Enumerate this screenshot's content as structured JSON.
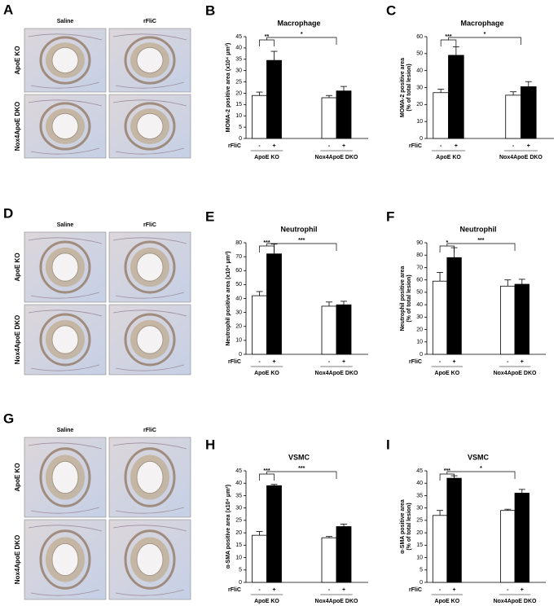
{
  "micrographs": [
    {
      "panel": "A",
      "columns": [
        "Saline",
        "rFliC"
      ],
      "rows": [
        "ApoE KO",
        "Nox4ApoE DKO"
      ]
    },
    {
      "panel": "D",
      "columns": [
        "Saline",
        "rFliC"
      ],
      "rows": [
        "ApoE KO",
        "Nox4ApoE DKO"
      ]
    },
    {
      "panel": "G",
      "columns": [
        "Saline",
        "rFliC"
      ],
      "rows": [
        "ApoE KO",
        "Nox4ApoE DKO"
      ]
    }
  ],
  "chart_data": [
    {
      "type": "bar",
      "panel": "B",
      "title": "Macrophage",
      "y_label": [
        "MOMA-2 positive area (x10⁴ μm²)"
      ],
      "x_label": "rFliC",
      "categories": [
        "-",
        "+",
        "-",
        "+"
      ],
      "groups": [
        "ApoE KO",
        "Nox4ApoE DKO"
      ],
      "values": [
        19,
        34.5,
        18,
        21
      ],
      "errors": [
        1.5,
        4,
        1,
        2
      ],
      "colors": [
        "#ffffff",
        "#000000",
        "#ffffff",
        "#000000"
      ],
      "ylim": [
        0,
        45
      ],
      "yticks": [
        0,
        5,
        10,
        15,
        20,
        25,
        30,
        35,
        40,
        45
      ],
      "annotations": [
        "**",
        "*"
      ]
    },
    {
      "type": "bar",
      "panel": "C",
      "title": "Macrophage",
      "y_label": [
        "MOMA-2 positive area",
        "(% of total lesion)"
      ],
      "x_label": "rFliC",
      "categories": [
        "-",
        "+",
        "-",
        "+"
      ],
      "groups": [
        "ApoE KO",
        "Nox4ApoE DKO"
      ],
      "values": [
        27,
        49,
        25.5,
        30.5
      ],
      "errors": [
        2,
        5,
        2,
        3
      ],
      "colors": [
        "#ffffff",
        "#000000",
        "#ffffff",
        "#000000"
      ],
      "ylim": [
        0,
        60
      ],
      "yticks": [
        0,
        10,
        20,
        30,
        40,
        50,
        60
      ],
      "annotations": [
        "***",
        "*"
      ]
    },
    {
      "type": "bar",
      "panel": "E",
      "title": "Neutrophil",
      "y_label": [
        "Neutrophil positive area (x10⁴ μm²)"
      ],
      "x_label": "rFliC",
      "categories": [
        "-",
        "+",
        "-",
        "+"
      ],
      "groups": [
        "ApoE KO",
        "Nox4ApoE DKO"
      ],
      "values": [
        42,
        72,
        34.5,
        35.5
      ],
      "errors": [
        3,
        7,
        3,
        2.5
      ],
      "colors": [
        "#ffffff",
        "#000000",
        "#ffffff",
        "#000000"
      ],
      "ylim": [
        0,
        80
      ],
      "yticks": [
        0,
        10,
        20,
        30,
        40,
        50,
        60,
        70,
        80
      ],
      "annotations": [
        "***",
        "***"
      ]
    },
    {
      "type": "bar",
      "panel": "F",
      "title": "Neutrophil",
      "y_label": [
        "Neutrophil positive area",
        "(% of total lesion)"
      ],
      "x_label": "rFliC",
      "categories": [
        "-",
        "+",
        "-",
        "+"
      ],
      "groups": [
        "ApoE KO",
        "Nox4ApoE DKO"
      ],
      "values": [
        59,
        78,
        55,
        56.5
      ],
      "errors": [
        7,
        8,
        5,
        4
      ],
      "colors": [
        "#ffffff",
        "#000000",
        "#ffffff",
        "#000000"
      ],
      "ylim": [
        0,
        90
      ],
      "yticks": [
        0,
        10,
        20,
        30,
        40,
        50,
        60,
        70,
        80,
        90
      ],
      "annotations": [
        "*",
        "***"
      ]
    },
    {
      "type": "bar",
      "panel": "H",
      "title": "VSMC",
      "y_label": [
        "α-SMA positive area (x10⁴ μm²)"
      ],
      "x_label": "rFliC",
      "categories": [
        "-",
        "+",
        "-",
        "+"
      ],
      "groups": [
        "ApoE KO",
        "Nox4ApoE DKO"
      ],
      "values": [
        19,
        39,
        18,
        22.5
      ],
      "errors": [
        1.5,
        0.5,
        0.5,
        1
      ],
      "colors": [
        "#ffffff",
        "#000000",
        "#ffffff",
        "#000000"
      ],
      "ylim": [
        0,
        45
      ],
      "yticks": [
        0,
        5,
        10,
        15,
        20,
        25,
        30,
        35,
        40,
        45
      ],
      "annotations": [
        "***",
        "***"
      ]
    },
    {
      "type": "bar",
      "panel": "I",
      "title": "VSMC",
      "y_label": [
        "α-SMA positive area",
        "(% of total lesion)"
      ],
      "x_label": "rFliC",
      "categories": [
        "-",
        "+",
        "-",
        "+"
      ],
      "groups": [
        "ApoE KO",
        "Nox4ApoE DKO"
      ],
      "values": [
        27,
        42,
        29,
        36
      ],
      "errors": [
        2,
        1,
        0.5,
        1.5
      ],
      "colors": [
        "#ffffff",
        "#000000",
        "#ffffff",
        "#000000"
      ],
      "ylim": [
        0,
        45
      ],
      "yticks": [
        0,
        5,
        10,
        15,
        20,
        25,
        30,
        35,
        40,
        45
      ],
      "annotations": [
        "***",
        "*"
      ]
    }
  ]
}
